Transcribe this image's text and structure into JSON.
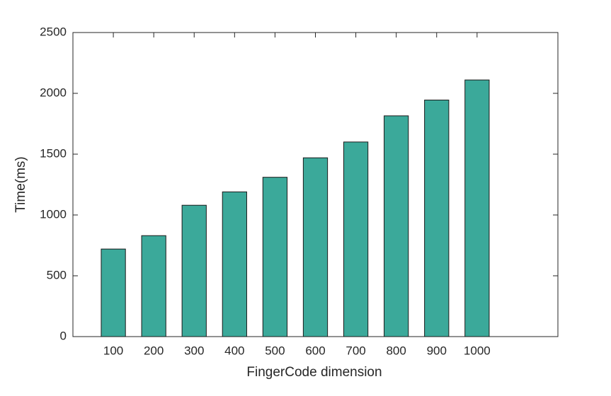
{
  "chart_data": {
    "type": "bar",
    "xlabel": "FingerCode dimension",
    "ylabel": "Time(ms)",
    "x": [
      100,
      200,
      300,
      400,
      500,
      600,
      700,
      800,
      900,
      1000
    ],
    "values": [
      720,
      830,
      1080,
      1190,
      1310,
      1470,
      1600,
      1815,
      1945,
      2110
    ],
    "color": "#3ba99a",
    "xlim": [
      0,
      1200
    ],
    "xticks": [
      100,
      200,
      300,
      400,
      500,
      600,
      700,
      800,
      900,
      1000
    ],
    "ylim": [
      0,
      2500
    ],
    "yticks": [
      0,
      500,
      1000,
      1500,
      2000,
      2500
    ],
    "grid": false
  }
}
